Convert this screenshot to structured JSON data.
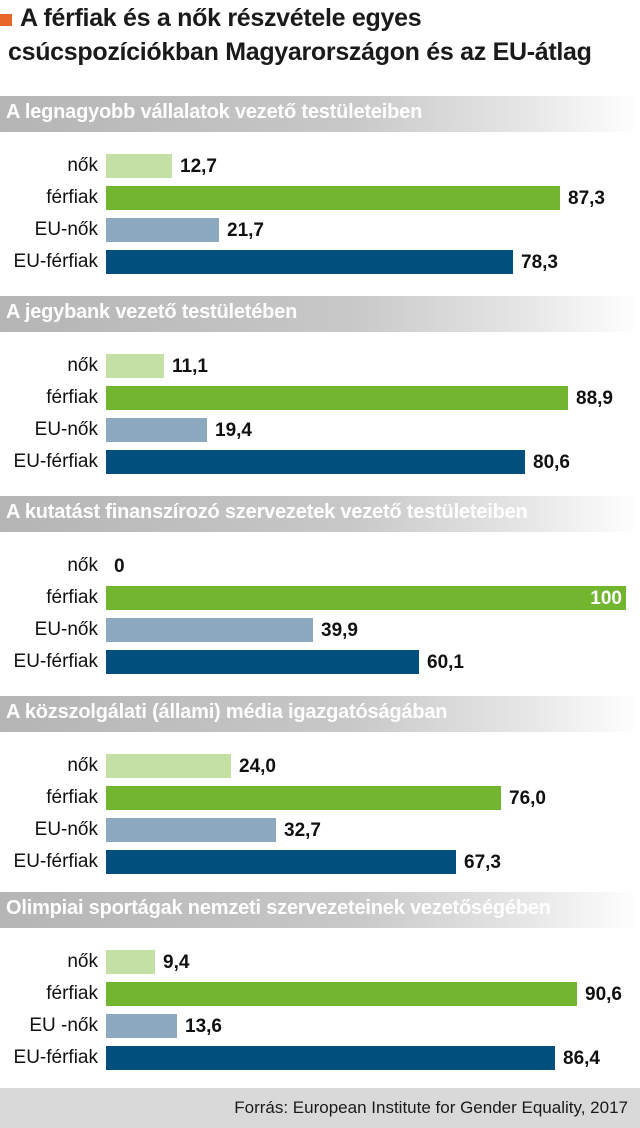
{
  "title": {
    "line1": "A férfiak és a nők részvétele egyes",
    "line2": "csúcspozíciókban Magyarországon és az EU-átlag"
  },
  "source": "Forrás: European Institute for Gender Equality, 2017",
  "colors": {
    "nok": "#c5e0a5",
    "ferfiak": "#72b52e",
    "eu_nok": "#8ca9bf",
    "eu_ferfiak": "#004f7c",
    "accent": "#e8672a"
  },
  "chart_data": [
    {
      "type": "bar",
      "orientation": "horizontal",
      "title": "A legnagyobb vállalatok vezető testületeiben",
      "categories": [
        "nők",
        "férfiak",
        "EU-nők",
        "EU-férfiak"
      ],
      "values": [
        12.7,
        87.3,
        21.7,
        78.3
      ],
      "labels": [
        "12,7",
        "87,3",
        "21,7",
        "78,3"
      ],
      "xlim": [
        0,
        100
      ]
    },
    {
      "type": "bar",
      "orientation": "horizontal",
      "title": "A jegybank vezető testületében",
      "categories": [
        "nők",
        "férfiak",
        "EU-nők",
        "EU-férfiak"
      ],
      "values": [
        11.1,
        88.9,
        19.4,
        80.6
      ],
      "labels": [
        "11,1",
        "88,9",
        "19,4",
        "80,6"
      ],
      "xlim": [
        0,
        100
      ]
    },
    {
      "type": "bar",
      "orientation": "horizontal",
      "title": "A kutatást finanszírozó szervezetek vezető testületeiben",
      "categories": [
        "nők",
        "férfiak",
        "EU-nők",
        "EU-férfiak"
      ],
      "values": [
        0,
        100,
        39.9,
        60.1
      ],
      "labels": [
        "0",
        "100",
        "39,9",
        "60,1"
      ],
      "xlim": [
        0,
        100
      ]
    },
    {
      "type": "bar",
      "orientation": "horizontal",
      "title": "A közszolgálati (állami) média igazgatóságában",
      "categories": [
        "nők",
        "férfiak",
        "EU-nők",
        "EU-férfiak"
      ],
      "values": [
        24.0,
        76.0,
        32.7,
        67.3
      ],
      "labels": [
        "24,0",
        "76,0",
        "32,7",
        "67,3"
      ],
      "xlim": [
        0,
        100
      ]
    },
    {
      "type": "bar",
      "orientation": "horizontal",
      "title": "Olimpiai sportágak nemzeti szervezeteinek vezetőségében",
      "categories": [
        "nők",
        "férfiak",
        "EU -nők",
        "EU-férfiak"
      ],
      "values": [
        9.4,
        90.6,
        13.6,
        86.4
      ],
      "labels": [
        "9,4",
        "90,6",
        "13,6",
        "86,4"
      ],
      "xlim": [
        0,
        100
      ]
    }
  ]
}
